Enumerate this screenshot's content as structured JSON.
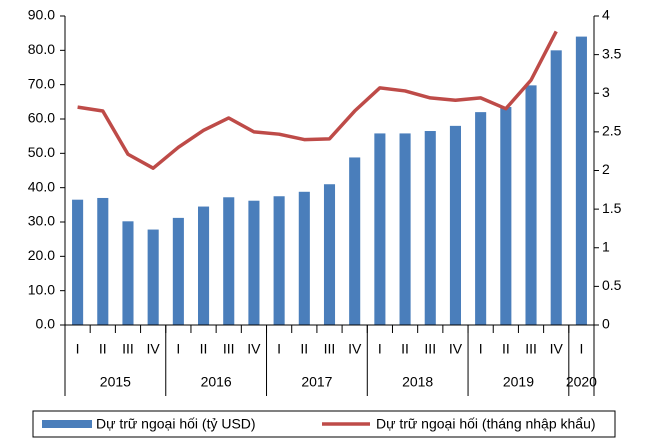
{
  "chart_data": {
    "type": "bar_line",
    "groups": [
      {
        "label": "2015",
        "categories": [
          "I",
          "II",
          "III",
          "IV"
        ]
      },
      {
        "label": "2016",
        "categories": [
          "I",
          "II",
          "III",
          "IV"
        ]
      },
      {
        "label": "2017",
        "categories": [
          "I",
          "II",
          "III",
          "IV"
        ]
      },
      {
        "label": "2018",
        "categories": [
          "I",
          "II",
          "III",
          "IV"
        ]
      },
      {
        "label": "2019",
        "categories": [
          "I",
          "II",
          "III",
          "IV"
        ]
      },
      {
        "label": "2020",
        "categories": [
          "I"
        ]
      }
    ],
    "series": [
      {
        "name": "Dự trữ ngoại hối (tỷ USD)",
        "type": "bar",
        "color": "#4a7ebb",
        "axis": "y",
        "values": [
          36.5,
          37,
          30.2,
          27.8,
          31.2,
          34.5,
          37.2,
          36.2,
          37.5,
          38.8,
          41,
          48.8,
          55.8,
          55.8,
          56.5,
          58,
          62,
          63.5,
          69.8,
          80,
          84
        ]
      },
      {
        "name": "Dự trữ ngoại hối (tháng nhập khẩu)",
        "type": "line",
        "color": "#be4b48",
        "axis": "y2",
        "values": [
          2.82,
          2.77,
          2.21,
          2.03,
          2.3,
          2.52,
          2.68,
          2.5,
          2.47,
          2.4,
          2.41,
          2.77,
          3.07,
          3.03,
          2.94,
          2.91,
          2.94,
          2.8,
          3.17,
          3.8,
          null
        ]
      }
    ],
    "ylim": [
      0,
      90
    ],
    "yticks": [
      {
        "value": 0,
        "label": "0.0"
      },
      {
        "value": 10,
        "label": "10.0"
      },
      {
        "value": 20,
        "label": "20.0"
      },
      {
        "value": 30,
        "label": "30.0"
      },
      {
        "value": 40,
        "label": "40.0"
      },
      {
        "value": 50,
        "label": "50.0"
      },
      {
        "value": 60,
        "label": "60.0"
      },
      {
        "value": 70,
        "label": "70.0"
      },
      {
        "value": 80,
        "label": "80.0"
      },
      {
        "value": 90,
        "label": "90.0"
      }
    ],
    "y2lim": [
      0,
      4
    ],
    "y2ticks": [
      0,
      0.5,
      1,
      1.5,
      2,
      2.5,
      3,
      3.5,
      4
    ],
    "legend": "bottom"
  }
}
